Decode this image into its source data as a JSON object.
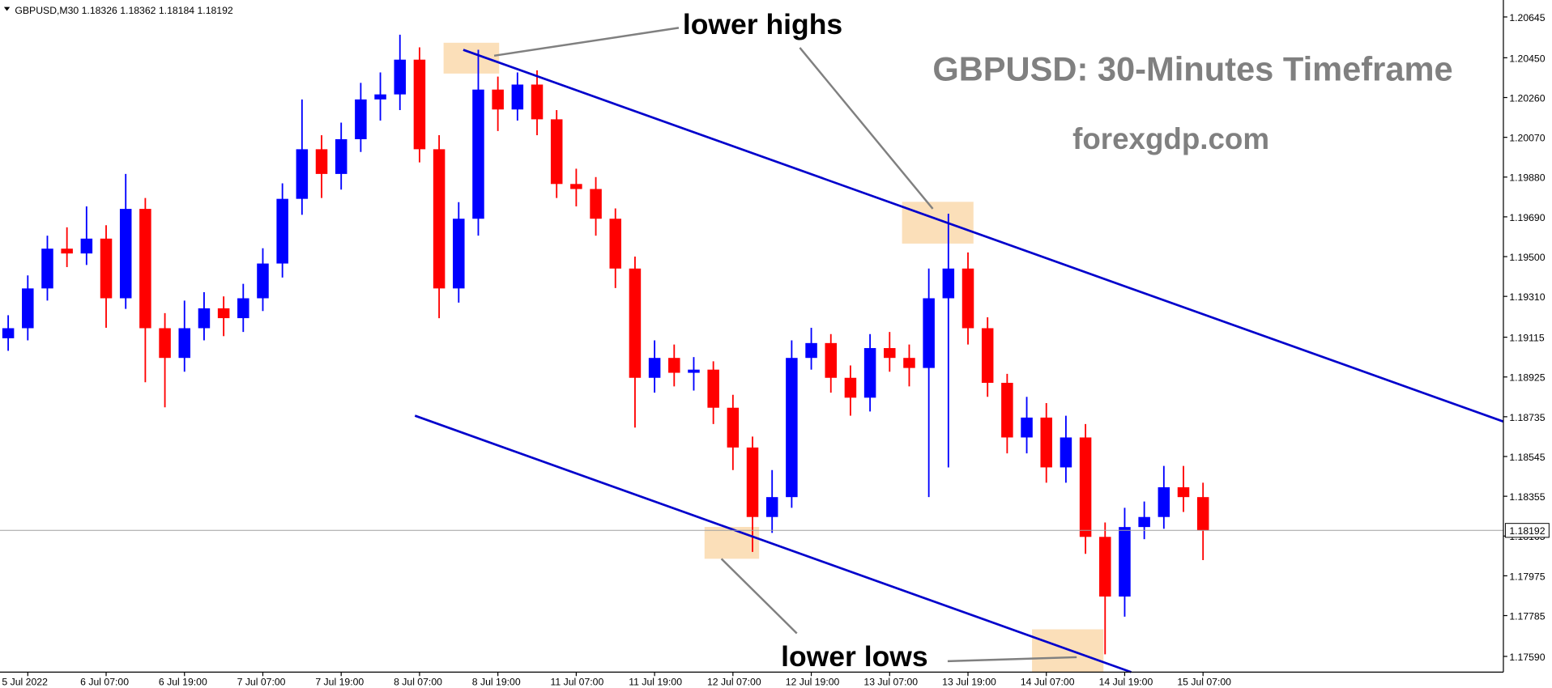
{
  "chart_data": {
    "type": "candlestick",
    "header": "GBPUSD,M30  1.18326 1.18362 1.18184 1.18192",
    "title": "GBPUSD: 30-Minutes Timeframe",
    "subtitle": "forexgdp.com",
    "annotations": [
      "lower highs",
      "lower lows"
    ],
    "up_color": "#0000ff",
    "down_color": "#ff0000",
    "current_price": 1.18192,
    "x": [
      -3,
      0,
      3,
      6,
      9,
      12,
      15,
      18,
      21,
      24,
      27,
      30,
      33,
      36,
      39,
      42,
      45,
      48,
      51,
      54,
      57,
      60,
      63,
      66,
      69,
      72,
      75,
      78,
      81,
      84,
      87,
      90,
      93,
      96,
      99,
      102,
      105,
      108,
      111,
      114,
      117,
      120,
      123,
      126,
      129,
      132,
      135,
      138,
      141,
      144,
      147,
      150,
      153,
      156,
      159,
      162,
      165,
      168,
      171,
      174,
      177,
      180
    ],
    "open": [
      1.1911,
      1.19158,
      1.19348,
      1.19538,
      1.19515,
      1.19586,
      1.19301,
      1.19728,
      1.19158,
      1.19016,
      1.19158,
      1.19253,
      1.19206,
      1.19301,
      1.19467,
      1.19776,
      1.20013,
      1.19895,
      1.20061,
      1.20251,
      1.20275,
      1.20441,
      1.20013,
      1.19348,
      1.19681,
      1.20298,
      1.20203,
      1.20322,
      1.20156,
      1.19847,
      1.19823,
      1.19681,
      1.19443,
      1.18921,
      1.19016,
      1.18945,
      1.1896,
      1.18778,
      1.18588,
      1.18256,
      1.18351,
      1.19016,
      1.19087,
      1.18921,
      1.18826,
      1.19063,
      1.19016,
      1.18968,
      1.19301,
      1.19443,
      1.19158,
      1.18897,
      1.18636,
      1.18731,
      1.18493,
      1.18636,
      1.18161,
      1.17876,
      1.18208,
      1.18256,
      1.18398,
      1.18351
    ],
    "high": [
      1.1922,
      1.1941,
      1.196,
      1.1964,
      1.1974,
      1.1965,
      1.19895,
      1.1978,
      1.1923,
      1.1929,
      1.1933,
      1.1931,
      1.1937,
      1.1954,
      1.1985,
      1.20251,
      1.2008,
      1.2014,
      1.2033,
      1.2038,
      1.2056,
      1.205,
      1.2008,
      1.1976,
      1.20488,
      1.2036,
      1.2038,
      1.2039,
      1.202,
      1.1992,
      1.1988,
      1.1973,
      1.195,
      1.191,
      1.1908,
      1.1902,
      1.19,
      1.1884,
      1.1864,
      1.1848,
      1.191,
      1.1916,
      1.1913,
      1.1898,
      1.1913,
      1.1914,
      1.1908,
      1.19443,
      1.19705,
      1.1952,
      1.1921,
      1.1894,
      1.1883,
      1.188,
      1.1874,
      1.187,
      1.1823,
      1.183,
      1.1833,
      1.185,
      1.185,
      1.1842
    ],
    "low": [
      1.1905,
      1.191,
      1.1929,
      1.1945,
      1.1946,
      1.1916,
      1.1925,
      1.189,
      1.1878,
      1.1895,
      1.191,
      1.1912,
      1.1914,
      1.1924,
      1.194,
      1.197,
      1.1978,
      1.1982,
      1.2,
      1.2015,
      1.202,
      1.1995,
      1.19206,
      1.1928,
      1.196,
      1.201,
      1.2015,
      1.2008,
      1.1978,
      1.1974,
      1.196,
      1.1935,
      1.18683,
      1.1885,
      1.1888,
      1.1886,
      1.187,
      1.1848,
      1.18089,
      1.1818,
      1.183,
      1.1896,
      1.1885,
      1.1874,
      1.1876,
      1.1895,
      1.1888,
      1.18351,
      1.18493,
      1.1908,
      1.1883,
      1.1856,
      1.1856,
      1.1842,
      1.1842,
      1.1808,
      1.176,
      1.1778,
      1.1815,
      1.182,
      1.1828,
      1.1805
    ],
    "close": [
      1.19158,
      1.19348,
      1.19538,
      1.19515,
      1.19586,
      1.19301,
      1.19728,
      1.19158,
      1.19016,
      1.19158,
      1.19253,
      1.19206,
      1.19301,
      1.19467,
      1.19776,
      1.20013,
      1.19895,
      1.20061,
      1.20251,
      1.20275,
      1.20441,
      1.20013,
      1.19348,
      1.19681,
      1.20298,
      1.20203,
      1.20322,
      1.20156,
      1.19847,
      1.19823,
      1.19681,
      1.19443,
      1.18921,
      1.19016,
      1.18945,
      1.1896,
      1.18778,
      1.18588,
      1.18256,
      1.18351,
      1.19016,
      1.19087,
      1.18921,
      1.18826,
      1.19063,
      1.19016,
      1.18968,
      1.19301,
      1.19443,
      1.19158,
      1.18897,
      1.18636,
      1.18731,
      1.18493,
      1.18636,
      1.18161,
      1.17876,
      1.18208,
      1.18256,
      1.18398,
      1.18351,
      1.18192
    ],
    "trendlines": [
      {
        "color": "#0000cc",
        "x": [
          66.7,
          226
        ],
        "y": [
          1.20488,
          1.18712
        ]
      },
      {
        "color": "#0000cc",
        "x": [
          59.3,
          169
        ],
        "y": [
          1.1874,
          1.17515
        ]
      }
    ],
    "xlim": [
      -4.255,
      226
    ],
    "ylim": [
      1.17515,
      1.20726
    ],
    "xticks": [
      {
        "value": 0,
        "label": "5 Jul 2022"
      },
      {
        "value": 12,
        "label": "6 Jul 07:00"
      },
      {
        "value": 24,
        "label": "6 Jul 19:00"
      },
      {
        "value": 36,
        "label": "7 Jul 07:00"
      },
      {
        "value": 48,
        "label": "7 Jul 19:00"
      },
      {
        "value": 60,
        "label": "8 Jul 07:00"
      },
      {
        "value": 72,
        "label": "8 Jul 19:00"
      },
      {
        "value": 84,
        "label": "11 Jul 07:00"
      },
      {
        "value": 96,
        "label": "11 Jul 19:00"
      },
      {
        "value": 108,
        "label": "12 Jul 07:00"
      },
      {
        "value": 120,
        "label": "12 Jul 19:00"
      },
      {
        "value": 132,
        "label": "13 Jul 07:00"
      },
      {
        "value": 144,
        "label": "13 Jul 19:00"
      },
      {
        "value": 156,
        "label": "14 Jul 07:00"
      },
      {
        "value": 168,
        "label": "14 Jul 19:00"
      },
      {
        "value": 180,
        "label": "15 Jul 07:00"
      }
    ],
    "yticks": [
      1.20645,
      {
        "value": 1.2045,
        "label": "1.20450"
      },
      {
        "value": 1.2026,
        "label": "1.20260"
      },
      {
        "value": 1.2007,
        "label": "1.20070"
      },
      {
        "value": 1.1988,
        "label": "1.19880"
      },
      {
        "value": 1.1969,
        "label": "1.19690"
      },
      {
        "value": 1.195,
        "label": "1.19500"
      },
      {
        "value": 1.1931,
        "label": "1.19310"
      },
      1.19115,
      1.18925,
      1.18735,
      1.18545,
      1.18355,
      1.18165,
      1.17975,
      1.17785,
      {
        "value": 1.1759,
        "label": "1.17590"
      }
    ]
  }
}
